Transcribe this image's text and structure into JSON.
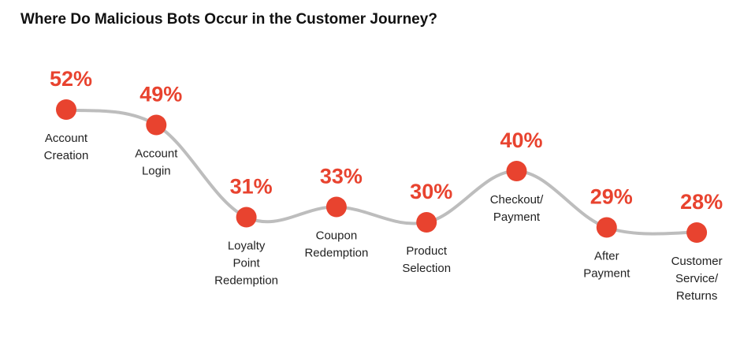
{
  "title": "Where Do Malicious Bots Occur in the Customer Journey?",
  "colors": {
    "accent": "#e8432f",
    "line": "#bdbdbd"
  },
  "chart_data": {
    "type": "line",
    "title": "Where Do Malicious Bots Occur in the Customer Journey?",
    "unit": "%",
    "categories": [
      "Account Creation",
      "Account Login",
      "Loyalty Point Redemption",
      "Coupon Redemption",
      "Product Selection",
      "Checkout/ Payment",
      "After Payment",
      "Customer Service/ Returns"
    ],
    "values": [
      52,
      49,
      31,
      33,
      30,
      40,
      29,
      28
    ],
    "value_labels": [
      "52%",
      "49%",
      "31%",
      "33%",
      "30%",
      "40%",
      "29%",
      "28%"
    ],
    "label_lines": [
      [
        "Account",
        "Creation"
      ],
      [
        "Account",
        "Login"
      ],
      [
        "Loyalty",
        "Point",
        "Redemption"
      ],
      [
        "Coupon",
        "Redemption"
      ],
      [
        "Product",
        "Selection"
      ],
      [
        "Checkout/",
        "Payment"
      ],
      [
        "After",
        "Payment"
      ],
      [
        "Customer",
        "Service/",
        "Returns"
      ]
    ],
    "grid": false,
    "legend": "none"
  }
}
